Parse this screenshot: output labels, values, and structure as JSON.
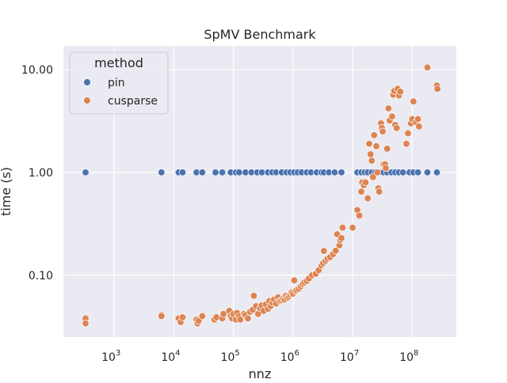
{
  "chart_data": {
    "type": "scatter",
    "title": "SpMV Benchmark",
    "xlabel": "nnz",
    "ylabel": "time (s)",
    "x_scale": "log",
    "y_scale": "log",
    "xlim": [
      140,
      550000000
    ],
    "ylim": [
      0.025,
      17
    ],
    "x_ticks": [
      {
        "value": 1000,
        "base": "10",
        "exp": "3"
      },
      {
        "value": 10000,
        "base": "10",
        "exp": "4"
      },
      {
        "value": 100000,
        "base": "10",
        "exp": "5"
      },
      {
        "value": 1000000,
        "base": "10",
        "exp": "6"
      },
      {
        "value": 10000000,
        "base": "10",
        "exp": "7"
      },
      {
        "value": 100000000,
        "base": "10",
        "exp": "8"
      }
    ],
    "y_ticks": [
      {
        "value": 0.1,
        "label": "0.10"
      },
      {
        "value": 1,
        "label": "1.00"
      },
      {
        "value": 10,
        "label": "10.00"
      }
    ],
    "grid": true,
    "legend": {
      "title": "method",
      "placement": "top-left"
    },
    "series": [
      {
        "name": "pin",
        "color": "#4c72b0",
        "points": [
          [
            330,
            1.0
          ],
          [
            6200,
            1.0
          ],
          [
            12000,
            1.0
          ],
          [
            14000,
            1.0
          ],
          [
            24000,
            1.0
          ],
          [
            30000,
            1.0
          ],
          [
            50000,
            1.0
          ],
          [
            65000,
            1.0
          ],
          [
            90000,
            1.0
          ],
          [
            110000,
            1.0
          ],
          [
            125000,
            1.0
          ],
          [
            160000,
            1.0
          ],
          [
            200000,
            1.0
          ],
          [
            250000,
            1.0
          ],
          [
            300000,
            1.0
          ],
          [
            380000,
            1.0
          ],
          [
            450000,
            1.0
          ],
          [
            520000,
            1.0
          ],
          [
            650000,
            1.0
          ],
          [
            780000,
            1.0
          ],
          [
            900000,
            1.0
          ],
          [
            1050000,
            1.0
          ],
          [
            1200000,
            1.0
          ],
          [
            1400000,
            1.0
          ],
          [
            1700000,
            1.0
          ],
          [
            2000000,
            1.0
          ],
          [
            2500000,
            1.0
          ],
          [
            3000000,
            1.0
          ],
          [
            3300000,
            1.0
          ],
          [
            4000000,
            1.0
          ],
          [
            5000000,
            1.0
          ],
          [
            6500000,
            1.0
          ],
          [
            12000000,
            1.0
          ],
          [
            14000000,
            1.0
          ],
          [
            16000000,
            1.0
          ],
          [
            18000000,
            1.0
          ],
          [
            21000000,
            1.0
          ],
          [
            24000000,
            1.0
          ],
          [
            28000000,
            1.0
          ],
          [
            33000000,
            1.0
          ],
          [
            38000000,
            1.0
          ],
          [
            45000000,
            1.0
          ],
          [
            52000000,
            1.0
          ],
          [
            60000000,
            1.0
          ],
          [
            70000000,
            1.0
          ],
          [
            90000000,
            1.0
          ],
          [
            105000000,
            1.0
          ],
          [
            125000000,
            1.0
          ],
          [
            180000000,
            1.0
          ],
          [
            260000000,
            1.0
          ]
        ]
      },
      {
        "name": "cusparse",
        "color": "#dd8452",
        "points": [
          [
            330,
            0.038
          ],
          [
            330,
            0.034
          ],
          [
            6200,
            0.041
          ],
          [
            6200,
            0.04
          ],
          [
            12000,
            0.038
          ],
          [
            13000,
            0.035
          ],
          [
            14000,
            0.039
          ],
          [
            24000,
            0.037
          ],
          [
            25000,
            0.034
          ],
          [
            26000,
            0.036
          ],
          [
            30000,
            0.04
          ],
          [
            48000,
            0.037
          ],
          [
            52000,
            0.039
          ],
          [
            65000,
            0.038
          ],
          [
            68000,
            0.042
          ],
          [
            85000,
            0.045
          ],
          [
            90000,
            0.04
          ],
          [
            95000,
            0.038
          ],
          [
            100000,
            0.042
          ],
          [
            110000,
            0.037
          ],
          [
            115000,
            0.043
          ],
          [
            125000,
            0.04
          ],
          [
            130000,
            0.037
          ],
          [
            150000,
            0.042
          ],
          [
            160000,
            0.041
          ],
          [
            175000,
            0.038
          ],
          [
            190000,
            0.044
          ],
          [
            210000,
            0.046
          ],
          [
            220000,
            0.063
          ],
          [
            240000,
            0.05
          ],
          [
            260000,
            0.042
          ],
          [
            280000,
            0.048
          ],
          [
            300000,
            0.051
          ],
          [
            320000,
            0.045
          ],
          [
            350000,
            0.052
          ],
          [
            380000,
            0.047
          ],
          [
            400000,
            0.056
          ],
          [
            420000,
            0.05
          ],
          [
            450000,
            0.054
          ],
          [
            480000,
            0.058
          ],
          [
            520000,
            0.053
          ],
          [
            560000,
            0.061
          ],
          [
            600000,
            0.056
          ],
          [
            640000,
            0.057
          ],
          [
            680000,
            0.059
          ],
          [
            720000,
            0.058
          ],
          [
            760000,
            0.063
          ],
          [
            800000,
            0.06
          ],
          [
            850000,
            0.062
          ],
          [
            900000,
            0.065
          ],
          [
            950000,
            0.068
          ],
          [
            1000000,
            0.066
          ],
          [
            1050000,
            0.089
          ],
          [
            1100000,
            0.07
          ],
          [
            1150000,
            0.072
          ],
          [
            1250000,
            0.074
          ],
          [
            1350000,
            0.078
          ],
          [
            1450000,
            0.082
          ],
          [
            1550000,
            0.085
          ],
          [
            1700000,
            0.088
          ],
          [
            1850000,
            0.093
          ],
          [
            2100000,
            0.1
          ],
          [
            2400000,
            0.103
          ],
          [
            2700000,
            0.112
          ],
          [
            3000000,
            0.125
          ],
          [
            3200000,
            0.131
          ],
          [
            3300000,
            0.172
          ],
          [
            3500000,
            0.138
          ],
          [
            3800000,
            0.145
          ],
          [
            4200000,
            0.15
          ],
          [
            4700000,
            0.16
          ],
          [
            5200000,
            0.173
          ],
          [
            5500000,
            0.25
          ],
          [
            6000000,
            0.195
          ],
          [
            6200000,
            0.22
          ],
          [
            6500000,
            0.23
          ],
          [
            6800000,
            0.29
          ],
          [
            10000000,
            0.29
          ],
          [
            12000000,
            0.43
          ],
          [
            13000000,
            0.38
          ],
          [
            14000000,
            0.65
          ],
          [
            14500000,
            0.8
          ],
          [
            15500000,
            0.75
          ],
          [
            16500000,
            0.8
          ],
          [
            18000000,
            0.56
          ],
          [
            19000000,
            1.9
          ],
          [
            20000000,
            1.5
          ],
          [
            21000000,
            1.3
          ],
          [
            22000000,
            0.9
          ],
          [
            23000000,
            2.3
          ],
          [
            25000000,
            1.8
          ],
          [
            26000000,
            1.0
          ],
          [
            27000000,
            0.7
          ],
          [
            28000000,
            0.65
          ],
          [
            30000000,
            3.0
          ],
          [
            31000000,
            2.7
          ],
          [
            32000000,
            2.5
          ],
          [
            33000000,
            1.2
          ],
          [
            35000000,
            1.2
          ],
          [
            36000000,
            1.1
          ],
          [
            38000000,
            1.7
          ],
          [
            40000000,
            4.2
          ],
          [
            42000000,
            3.2
          ],
          [
            46000000,
            3.5
          ],
          [
            48000000,
            5.7
          ],
          [
            50000000,
            6.2
          ],
          [
            52000000,
            2.9
          ],
          [
            55000000,
            2.7
          ],
          [
            57000000,
            6.5
          ],
          [
            60000000,
            5.6
          ],
          [
            63000000,
            6.1
          ],
          [
            80000000,
            1.9
          ],
          [
            85000000,
            2.4
          ],
          [
            95000000,
            3.0
          ],
          [
            100000000,
            3.3
          ],
          [
            105000000,
            4.9
          ],
          [
            115000000,
            3.1
          ],
          [
            125000000,
            3.3
          ],
          [
            130000000,
            2.8
          ],
          [
            180000000,
            10.5
          ],
          [
            260000000,
            7.0
          ],
          [
            265000000,
            6.5
          ]
        ]
      }
    ]
  }
}
